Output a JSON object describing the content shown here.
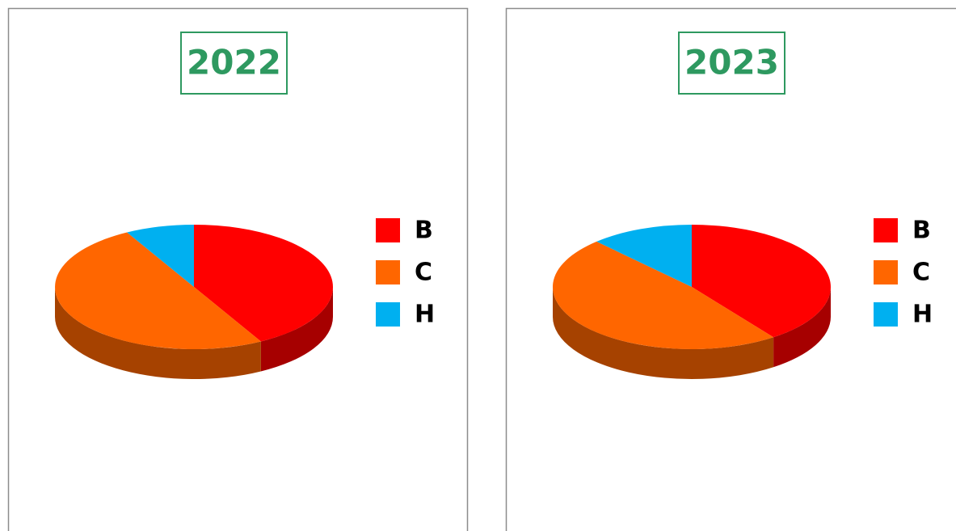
{
  "chart_data": [
    {
      "type": "pie",
      "title": "2022",
      "categories": [
        "B",
        "C",
        "H"
      ],
      "values": [
        42,
        50,
        8
      ],
      "colors": [
        "#ff0000",
        "#ff6600",
        "#00b0f0"
      ]
    },
    {
      "type": "pie",
      "title": "2023",
      "categories": [
        "B",
        "C",
        "H"
      ],
      "values": [
        40,
        48,
        12
      ],
      "colors": [
        "#ff0000",
        "#ff6600",
        "#00b0f0"
      ]
    }
  ]
}
